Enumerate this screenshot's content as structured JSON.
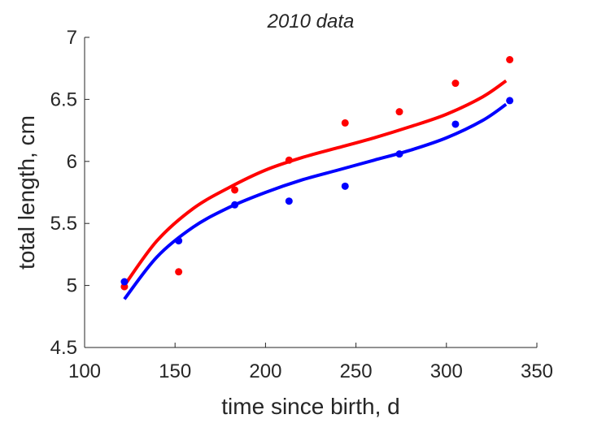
{
  "chart_data": {
    "type": "scatter",
    "title": "2010 data",
    "xlabel": "time since birth, d",
    "ylabel": "total length, cm",
    "xlim": [
      100,
      350
    ],
    "ylim": [
      4.5,
      7
    ],
    "xticks": [
      "100",
      "150",
      "200",
      "250",
      "300",
      "350"
    ],
    "yticks": [
      "4.5",
      "5",
      "5.5",
      "6",
      "6.5",
      "7"
    ],
    "grid": false,
    "legend": "none",
    "series": [
      {
        "color": "#ff0000",
        "points": {
          "x": [
            122,
            152,
            183,
            213,
            244,
            274,
            305,
            335
          ],
          "y": [
            4.99,
            5.11,
            5.77,
            6.01,
            6.31,
            6.4,
            6.63,
            6.82
          ]
        },
        "fit": {
          "x": [
            122,
            140,
            160,
            180,
            200,
            220,
            240,
            260,
            280,
            300,
            320,
            333
          ],
          "y": [
            5.0,
            5.36,
            5.62,
            5.79,
            5.93,
            6.03,
            6.11,
            6.19,
            6.28,
            6.38,
            6.52,
            6.65
          ]
        }
      },
      {
        "color": "#0000ff",
        "points": {
          "x": [
            122,
            152,
            183,
            213,
            244,
            274,
            305,
            335
          ],
          "y": [
            5.03,
            5.36,
            5.65,
            5.68,
            5.8,
            6.06,
            6.3,
            6.49
          ]
        },
        "fit": {
          "x": [
            122,
            140,
            160,
            180,
            200,
            220,
            240,
            260,
            280,
            300,
            320,
            333
          ],
          "y": [
            4.89,
            5.23,
            5.47,
            5.63,
            5.75,
            5.85,
            5.93,
            6.01,
            6.09,
            6.19,
            6.33,
            6.46
          ]
        }
      }
    ]
  }
}
